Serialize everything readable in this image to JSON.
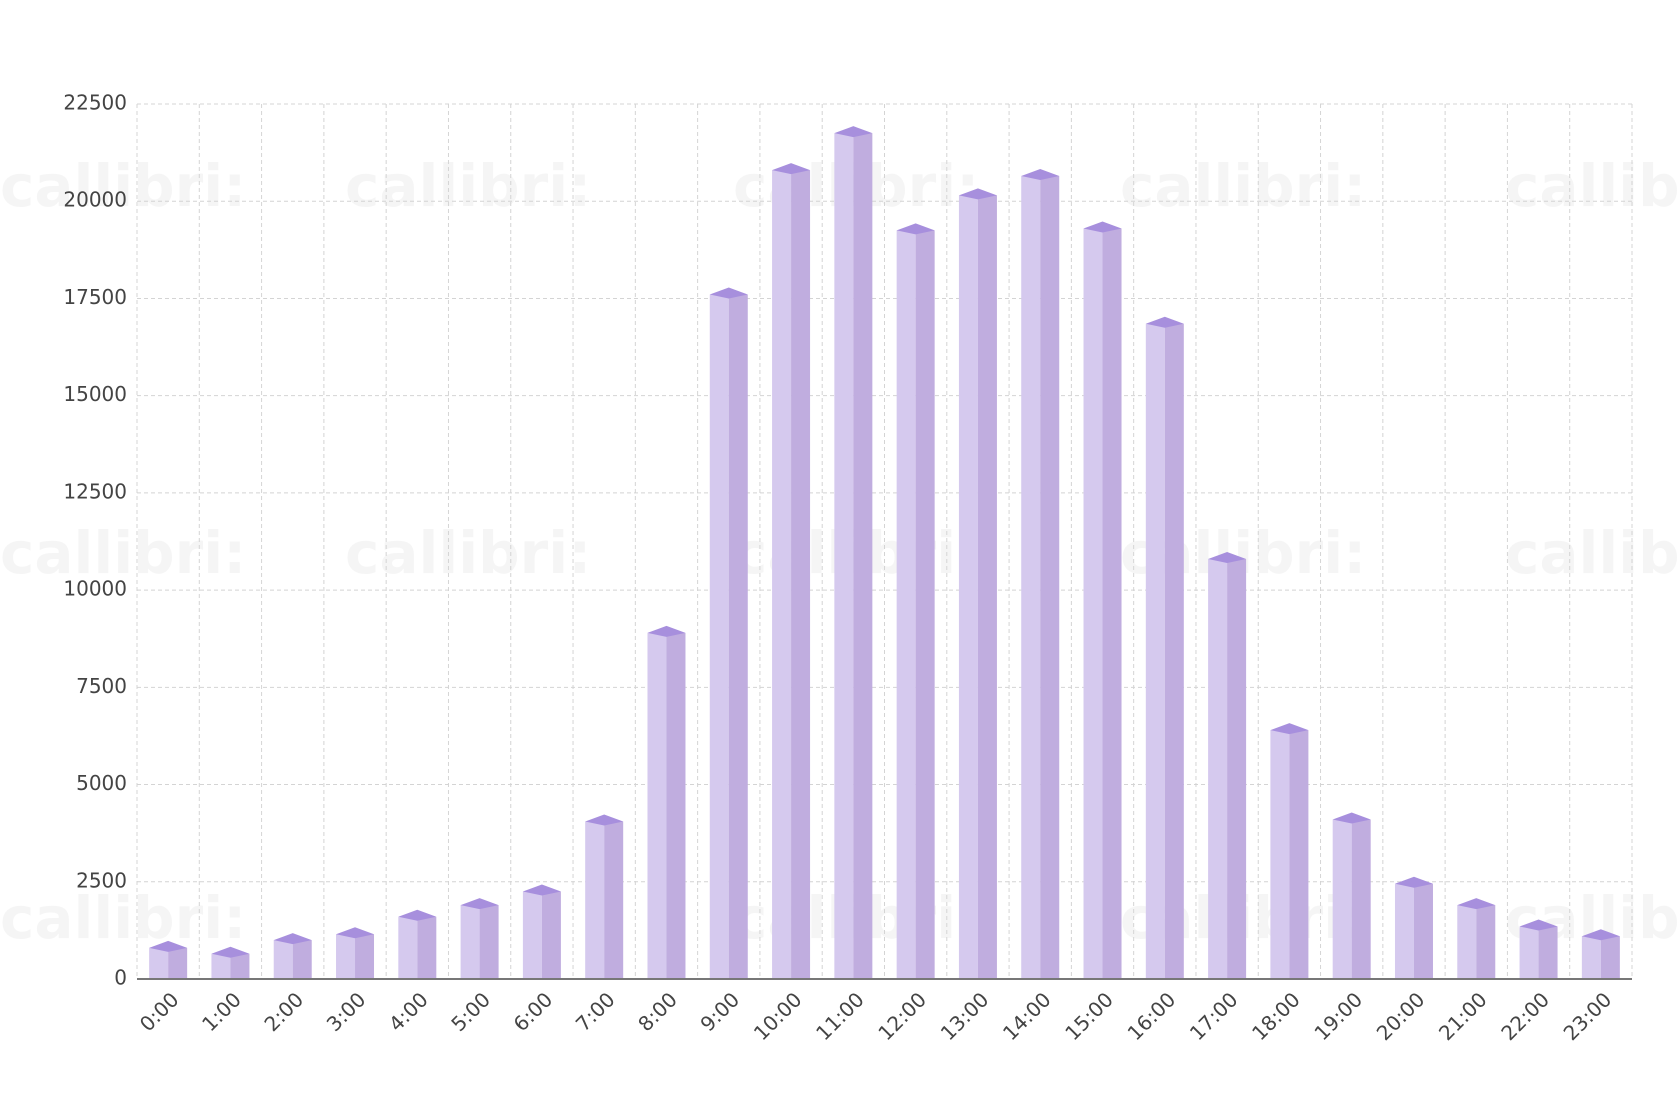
{
  "chart_data": {
    "type": "bar3d",
    "watermark": "callibri:",
    "categories": [
      "0:00",
      "1:00",
      "2:00",
      "3:00",
      "4:00",
      "5:00",
      "6:00",
      "7:00",
      "8:00",
      "9:00",
      "10:00",
      "11:00",
      "12:00",
      "13:00",
      "14:00",
      "15:00",
      "16:00",
      "17:00",
      "18:00",
      "19:00",
      "20:00",
      "21:00",
      "22:00",
      "23:00"
    ],
    "values": [
      800,
      650,
      1000,
      1150,
      1600,
      1900,
      2250,
      4050,
      8900,
      17600,
      20800,
      21750,
      19250,
      20150,
      20650,
      19300,
      16850,
      10800,
      6400,
      4100,
      2450,
      1900,
      1350,
      1100
    ],
    "color": "#c0addf",
    "ylim": [
      0,
      22500
    ],
    "yticks": [
      0,
      2500,
      5000,
      7500,
      10000,
      12500,
      15000,
      17500,
      20000,
      22500
    ],
    "grid": true
  }
}
